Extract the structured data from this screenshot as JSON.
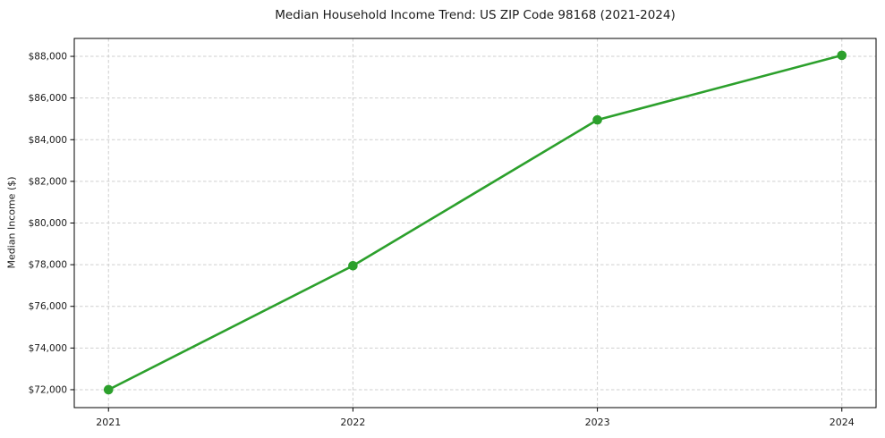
{
  "chart_data": {
    "type": "line",
    "title": "Median Household Income Trend: US ZIP Code 98168 (2021-2024)",
    "xlabel": "",
    "ylabel": "Median Income ($)",
    "x": [
      2021,
      2022,
      2023,
      2024
    ],
    "values": [
      72000,
      77950,
      84950,
      88050
    ],
    "xlim": [
      2020.86,
      2024.14
    ],
    "ylim": [
      71140,
      88860
    ],
    "xticks": [
      2021,
      2022,
      2023,
      2024
    ],
    "xtick_labels": [
      "2021",
      "2022",
      "2023",
      "2024"
    ],
    "yticks": [
      72000,
      74000,
      76000,
      78000,
      80000,
      82000,
      84000,
      86000,
      88000
    ],
    "ytick_labels": [
      "$72,000",
      "$74,000",
      "$76,000",
      "$78,000",
      "$80,000",
      "$82,000",
      "$84,000",
      "$86,000",
      "$88,000"
    ],
    "grid": true,
    "grid_color": "#cfcfcf",
    "legend": "none",
    "line_color": "#2ca02c",
    "marker": "circle",
    "marker_radius": 5.3,
    "background_color": "#ffffff"
  }
}
